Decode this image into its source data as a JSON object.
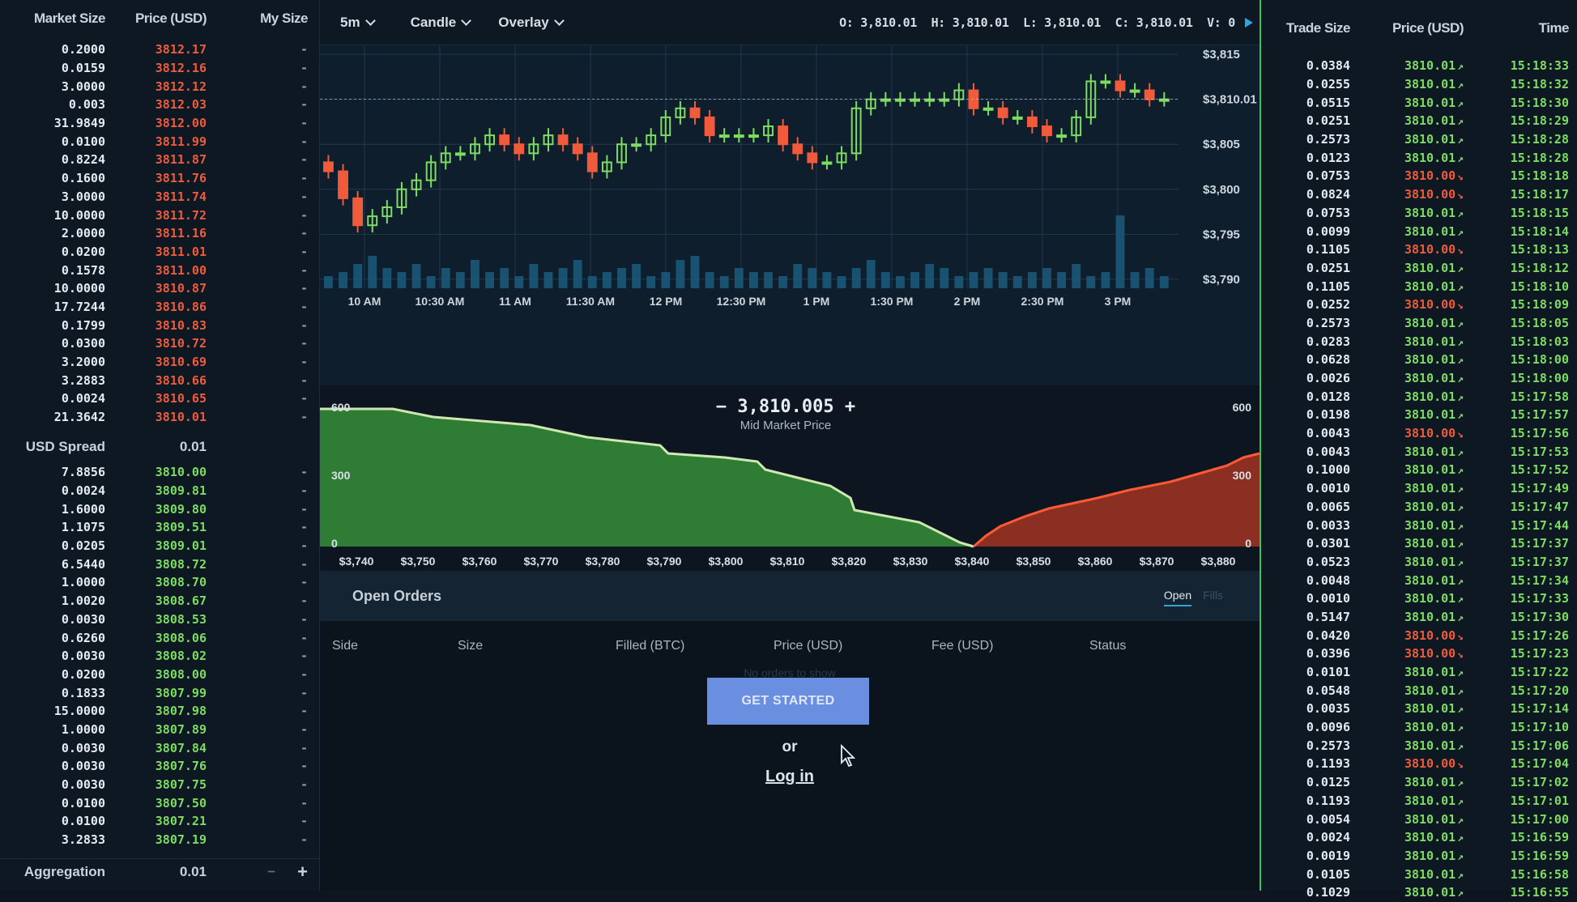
{
  "orderbook": {
    "headers": {
      "market_size": "Market Size",
      "price": "Price (USD)",
      "my_size": "My Size"
    },
    "asks": [
      {
        "size": "0.2000",
        "price": "3812.17"
      },
      {
        "size": "0.0159",
        "price": "3812.16"
      },
      {
        "size": "3.0000",
        "price": "3812.12"
      },
      {
        "size": "0.003",
        "price": "3812.03"
      },
      {
        "size": "31.9849",
        "price": "3812.00"
      },
      {
        "size": "0.0100",
        "price": "3811.99"
      },
      {
        "size": "0.8224",
        "price": "3811.87"
      },
      {
        "size": "0.1600",
        "price": "3811.76"
      },
      {
        "size": "3.0000",
        "price": "3811.74"
      },
      {
        "size": "10.0000",
        "price": "3811.72"
      },
      {
        "size": "2.0000",
        "price": "3811.16"
      },
      {
        "size": "0.0200",
        "price": "3811.01"
      },
      {
        "size": "0.1578",
        "price": "3811.00"
      },
      {
        "size": "10.0000",
        "price": "3810.87"
      },
      {
        "size": "17.7244",
        "price": "3810.86"
      },
      {
        "size": "0.1799",
        "price": "3810.83"
      },
      {
        "size": "0.0300",
        "price": "3810.72"
      },
      {
        "size": "3.2000",
        "price": "3810.69"
      },
      {
        "size": "3.2883",
        "price": "3810.66"
      },
      {
        "size": "0.0024",
        "price": "3810.65"
      },
      {
        "size": "21.3642",
        "price": "3810.01"
      }
    ],
    "spread_label": "USD Spread",
    "spread_value": "0.01",
    "bids": [
      {
        "size": "7.8856",
        "price": "3810.00"
      },
      {
        "size": "0.0024",
        "price": "3809.81"
      },
      {
        "size": "1.6000",
        "price": "3809.80"
      },
      {
        "size": "1.1075",
        "price": "3809.51"
      },
      {
        "size": "0.0205",
        "price": "3809.01"
      },
      {
        "size": "6.5440",
        "price": "3808.72"
      },
      {
        "size": "1.0000",
        "price": "3808.70"
      },
      {
        "size": "1.0020",
        "price": "3808.67"
      },
      {
        "size": "0.0030",
        "price": "3808.53"
      },
      {
        "size": "0.6260",
        "price": "3808.06"
      },
      {
        "size": "0.0030",
        "price": "3808.02"
      },
      {
        "size": "0.0200",
        "price": "3808.00"
      },
      {
        "size": "0.1833",
        "price": "3807.99"
      },
      {
        "size": "15.0000",
        "price": "3807.98"
      },
      {
        "size": "1.0000",
        "price": "3807.89"
      },
      {
        "size": "0.0030",
        "price": "3807.84"
      },
      {
        "size": "0.0030",
        "price": "3807.76"
      },
      {
        "size": "0.0030",
        "price": "3807.75"
      },
      {
        "size": "0.0100",
        "price": "3807.50"
      },
      {
        "size": "0.0100",
        "price": "3807.21"
      },
      {
        "size": "3.2833",
        "price": "3807.19"
      }
    ],
    "my_size_placeholder": "-",
    "aggregation_label": "Aggregation",
    "aggregation_value": "0.01",
    "aggregation_minus": "−",
    "aggregation_plus": "+"
  },
  "toolbar": {
    "interval": "5m",
    "chart_type": "Candle",
    "overlay": "Overlay",
    "ohlc": "O: 3,810.01  H: 3,810.01  L: 3,810.01  C: 3,810.01  V: 0"
  },
  "price_chart": {
    "y_ticks": [
      "$3,815",
      "$3,810.01",
      "$3,805",
      "$3,800",
      "$3,795",
      "$3,790"
    ],
    "x_ticks": [
      "10 AM",
      "10:30 AM",
      "11 AM",
      "11:30 AM",
      "12 PM",
      "12:30 PM",
      "1 PM",
      "1:30 PM",
      "2 PM",
      "2:30 PM",
      "3 PM"
    ],
    "colors": {
      "up": "#7ddc62",
      "down": "#ef5b3b",
      "volume": "#1b5a7e",
      "grid": "#22384d"
    }
  },
  "chart_data": {
    "type": "candlestick",
    "ylim": [
      3789,
      3816
    ],
    "candles_close_series": [
      3802,
      3799,
      3796,
      3797,
      3798,
      3800,
      3801,
      3803,
      3804,
      3804,
      3805,
      3806,
      3805,
      3804,
      3805,
      3806,
      3805,
      3804,
      3802,
      3803,
      3805,
      3805,
      3806,
      3808,
      3809,
      3808,
      3806,
      3806,
      3806,
      3806,
      3807,
      3805,
      3804,
      3803,
      3803,
      3804,
      3809,
      3810,
      3810,
      3810,
      3810,
      3810,
      3810,
      3811,
      3809,
      3809,
      3808,
      3808,
      3807,
      3806,
      3806,
      3808,
      3812,
      3812,
      3811,
      3811,
      3810,
      3810
    ],
    "volume": [
      3,
      4,
      6,
      8,
      5,
      4,
      6,
      3,
      5,
      4,
      7,
      4,
      5,
      3,
      6,
      4,
      5,
      7,
      3,
      4,
      5,
      6,
      3,
      4,
      7,
      8,
      4,
      3,
      5,
      4,
      4,
      3,
      6,
      5,
      4,
      3,
      5,
      7,
      4,
      3,
      4,
      6,
      5,
      3,
      4,
      5,
      4,
      3,
      4,
      5,
      4,
      6,
      3,
      4,
      18,
      4,
      5,
      3
    ]
  },
  "depth": {
    "x_ticks": [
      "$3,740",
      "$3,750",
      "$3,760",
      "$3,770",
      "$3,780",
      "$3,790",
      "$3,800",
      "$3,810",
      "$3,820",
      "$3,830",
      "$3,840",
      "$3,850",
      "$3,860",
      "$3,870",
      "$3,880"
    ],
    "left_y_ticks": [
      "600",
      "300",
      "0"
    ],
    "right_y_ticks": [
      "600",
      "300",
      "0"
    ],
    "mid_price": "−  3,810.005  +",
    "mid_label": "Mid Market Price",
    "colors": {
      "bid": "#2f7d34",
      "ask": "#8a2f22",
      "bid_line": "#cfe8b0",
      "ask_line": "#ff5a35"
    }
  },
  "orders": {
    "title": "Open Orders",
    "tab_open": "Open",
    "tab_fills": "Fills",
    "columns": [
      "Side",
      "Size",
      "Filled (BTC)",
      "Price (USD)",
      "Fee (USD)",
      "Status"
    ],
    "empty": "No orders to show",
    "cta": "GET STARTED",
    "or": "or",
    "login": "Log in"
  },
  "trades": {
    "headers": {
      "trade_size": "Trade Size",
      "price": "Price (USD)",
      "time": "Time"
    },
    "rows": [
      {
        "size": "0.0384",
        "price": "3810.01",
        "dir": "up",
        "time": "15:18:33"
      },
      {
        "size": "0.0255",
        "price": "3810.01",
        "dir": "up",
        "time": "15:18:32"
      },
      {
        "size": "0.0515",
        "price": "3810.01",
        "dir": "up",
        "time": "15:18:30"
      },
      {
        "size": "0.0251",
        "price": "3810.01",
        "dir": "up",
        "time": "15:18:29"
      },
      {
        "size": "0.2573",
        "price": "3810.01",
        "dir": "up",
        "time": "15:18:28"
      },
      {
        "size": "0.0123",
        "price": "3810.01",
        "dir": "up",
        "time": "15:18:28"
      },
      {
        "size": "0.0753",
        "price": "3810.00",
        "dir": "down",
        "time": "15:18:18"
      },
      {
        "size": "0.0824",
        "price": "3810.00",
        "dir": "down",
        "time": "15:18:17"
      },
      {
        "size": "0.0753",
        "price": "3810.01",
        "dir": "up",
        "time": "15:18:15"
      },
      {
        "size": "0.0099",
        "price": "3810.01",
        "dir": "up",
        "time": "15:18:14"
      },
      {
        "size": "0.1105",
        "price": "3810.00",
        "dir": "down",
        "time": "15:18:13"
      },
      {
        "size": "0.0251",
        "price": "3810.01",
        "dir": "up",
        "time": "15:18:12"
      },
      {
        "size": "0.1105",
        "price": "3810.01",
        "dir": "up",
        "time": "15:18:10"
      },
      {
        "size": "0.0252",
        "price": "3810.00",
        "dir": "down",
        "time": "15:18:09"
      },
      {
        "size": "0.2573",
        "price": "3810.01",
        "dir": "up",
        "time": "15:18:05"
      },
      {
        "size": "0.0283",
        "price": "3810.01",
        "dir": "up",
        "time": "15:18:03"
      },
      {
        "size": "0.0628",
        "price": "3810.01",
        "dir": "up",
        "time": "15:18:00"
      },
      {
        "size": "0.0026",
        "price": "3810.01",
        "dir": "up",
        "time": "15:18:00"
      },
      {
        "size": "0.0128",
        "price": "3810.01",
        "dir": "up",
        "time": "15:17:58"
      },
      {
        "size": "0.0198",
        "price": "3810.01",
        "dir": "up",
        "time": "15:17:57"
      },
      {
        "size": "0.0043",
        "price": "3810.00",
        "dir": "down",
        "time": "15:17:56"
      },
      {
        "size": "0.0043",
        "price": "3810.01",
        "dir": "up",
        "time": "15:17:53"
      },
      {
        "size": "0.1000",
        "price": "3810.01",
        "dir": "up",
        "time": "15:17:52"
      },
      {
        "size": "0.0010",
        "price": "3810.01",
        "dir": "up",
        "time": "15:17:49"
      },
      {
        "size": "0.0065",
        "price": "3810.01",
        "dir": "up",
        "time": "15:17:47"
      },
      {
        "size": "0.0033",
        "price": "3810.01",
        "dir": "up",
        "time": "15:17:44"
      },
      {
        "size": "0.0301",
        "price": "3810.01",
        "dir": "up",
        "time": "15:17:37"
      },
      {
        "size": "0.0523",
        "price": "3810.01",
        "dir": "up",
        "time": "15:17:37"
      },
      {
        "size": "0.0048",
        "price": "3810.01",
        "dir": "up",
        "time": "15:17:34"
      },
      {
        "size": "0.0010",
        "price": "3810.01",
        "dir": "up",
        "time": "15:17:33"
      },
      {
        "size": "0.5147",
        "price": "3810.01",
        "dir": "up",
        "time": "15:17:30"
      },
      {
        "size": "0.0420",
        "price": "3810.00",
        "dir": "down",
        "time": "15:17:26"
      },
      {
        "size": "0.0396",
        "price": "3810.00",
        "dir": "down",
        "time": "15:17:23"
      },
      {
        "size": "0.0101",
        "price": "3810.01",
        "dir": "up",
        "time": "15:17:22"
      },
      {
        "size": "0.0548",
        "price": "3810.01",
        "dir": "up",
        "time": "15:17:20"
      },
      {
        "size": "0.0035",
        "price": "3810.01",
        "dir": "up",
        "time": "15:17:14"
      },
      {
        "size": "0.0096",
        "price": "3810.01",
        "dir": "up",
        "time": "15:17:10"
      },
      {
        "size": "0.2573",
        "price": "3810.01",
        "dir": "up",
        "time": "15:17:06"
      },
      {
        "size": "0.1193",
        "price": "3810.00",
        "dir": "down",
        "time": "15:17:04"
      },
      {
        "size": "0.0125",
        "price": "3810.01",
        "dir": "up",
        "time": "15:17:02"
      },
      {
        "size": "0.1193",
        "price": "3810.01",
        "dir": "up",
        "time": "15:17:01"
      },
      {
        "size": "0.0054",
        "price": "3810.01",
        "dir": "up",
        "time": "15:17:00"
      },
      {
        "size": "0.0024",
        "price": "3810.01",
        "dir": "up",
        "time": "15:16:59"
      },
      {
        "size": "0.0019",
        "price": "3810.01",
        "dir": "up",
        "time": "15:16:59"
      },
      {
        "size": "0.0105",
        "price": "3810.01",
        "dir": "up",
        "time": "15:16:58"
      },
      {
        "size": "0.1029",
        "price": "3810.01",
        "dir": "up",
        "time": "15:16:55"
      }
    ]
  }
}
